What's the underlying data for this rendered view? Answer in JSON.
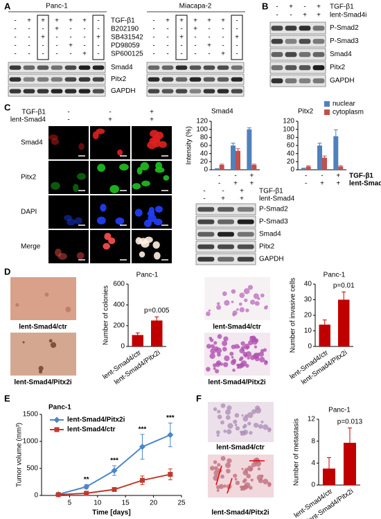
{
  "panels": {
    "a": {
      "letter": "A",
      "groups": [
        "Panc-1",
        "Miacapa-2"
      ],
      "treatments": [
        "TGF-β1",
        "B202190",
        "SB431542",
        "PD98059",
        "SP600125"
      ],
      "signs": [
        [
          "-",
          "+",
          "+",
          "+",
          "+",
          "+",
          "-"
        ],
        [
          "-",
          "-",
          "-",
          "+",
          "-",
          "-",
          "-"
        ],
        [
          "-",
          "-",
          "+",
          "-",
          "-",
          "-",
          "+"
        ],
        [
          "-",
          "-",
          "-",
          "-",
          "+",
          "-",
          "-"
        ],
        [
          "-",
          "-",
          "-",
          "-",
          "-",
          "+",
          "-"
        ]
      ],
      "blots": [
        "Smad4",
        "Pitx2",
        "GAPDH"
      ]
    },
    "b": {
      "letter": "B",
      "treatments": [
        "TGF-β1",
        "lent-Smad4i"
      ],
      "signs": [
        [
          "-",
          "+",
          "-",
          "+"
        ],
        [
          "-",
          "-",
          "+",
          "+"
        ]
      ],
      "blots": [
        "P-Smad2",
        "P-Smad3",
        "Smad4",
        "Pitx2",
        "GAPDH"
      ]
    },
    "c": {
      "letter": "C",
      "treatments": [
        "TGF-β1",
        "lent-Smad4"
      ],
      "image_signs": [
        [
          "-",
          "-",
          "+"
        ],
        [
          "-",
          "+",
          "+"
        ]
      ],
      "image_rows": [
        "Smad4",
        "Pitx2",
        "DAPI",
        "Merge"
      ],
      "chart_signs": [
        [
          "-",
          "-",
          "+"
        ],
        [
          "-",
          "+",
          "+"
        ]
      ],
      "blot_signs": [
        [
          "-",
          "-",
          "+"
        ],
        [
          "-",
          "+",
          "+"
        ]
      ],
      "blots": [
        "P-Smad2",
        "P-Smad3",
        "Smad4",
        "Pitx2",
        "GAPDH"
      ]
    },
    "d": {
      "letter": "D",
      "images": [
        "lent-Smad4/ctr",
        "lent-Smad4/Pitx2i"
      ]
    },
    "e": {
      "letter": "E"
    },
    "f": {
      "letter": "F",
      "images": [
        "lent-Smad4/ctr",
        "lent-Smad4/Pitx2i"
      ]
    }
  },
  "chart_data": [
    {
      "type": "bar",
      "title": "Smad4",
      "y_label": "Intensity (%)",
      "categories": [
        null,
        null,
        null
      ],
      "ylim": [
        0,
        120
      ],
      "yticks": [
        0,
        20,
        40,
        60,
        80,
        100,
        120
      ],
      "series": [
        {
          "name": "nuclear",
          "color": "#4f81bd",
          "values": [
            2,
            60,
            100
          ],
          "errors": [
            1,
            6,
            4
          ]
        },
        {
          "name": "cytoplasm",
          "color": "#c0504d",
          "values": [
            12,
            47,
            12
          ],
          "errors": [
            2,
            5,
            2
          ]
        }
      ]
    },
    {
      "type": "bar",
      "title": "Pitx2",
      "categories": [
        null,
        null,
        null
      ],
      "legend": "upper right",
      "ylim": [
        0,
        120
      ],
      "yticks": [
        0,
        20,
        40,
        60,
        80,
        100,
        120
      ],
      "series": [
        {
          "name": "nuclear",
          "color": "#4f81bd",
          "values": [
            3,
            60,
            83
          ],
          "errors": [
            1,
            6,
            16
          ]
        },
        {
          "name": "cytoplasm",
          "color": "#c0504d",
          "values": [
            8,
            30,
            8
          ],
          "errors": [
            2,
            4,
            2
          ]
        }
      ]
    },
    {
      "type": "bar",
      "title": "Panc-1",
      "y_label": "Number of colonies",
      "annotation": "p=0.005",
      "categories": [
        "lent-Smad4/ctr",
        "lent-Smad4/Pitx2i"
      ],
      "ylim": [
        0,
        600
      ],
      "yticks": [
        0,
        200,
        400,
        600
      ],
      "series": [
        {
          "color": "#c00000",
          "values": [
            110,
            250
          ],
          "errors": [
            20,
            35
          ]
        }
      ]
    },
    {
      "type": "bar",
      "title": "Panc-1",
      "y_label": "Number of invasive cells",
      "annotation": "p=0.01",
      "categories": [
        "lent-Smad4/ctr",
        "lent-Smad4/Pitx2i"
      ],
      "ylim": [
        0,
        40
      ],
      "yticks": [
        0,
        10,
        20,
        30,
        40
      ],
      "series": [
        {
          "color": "#c00000",
          "values": [
            14,
            30
          ],
          "errors": [
            3,
            5
          ]
        }
      ]
    },
    {
      "type": "line",
      "title": "Panc-1",
      "y_label": "Tumor volume (mm³)",
      "x_label": "Time [days]",
      "legend": "upper left",
      "x": [
        3,
        8,
        13,
        18,
        23
      ],
      "xlim": [
        0,
        25
      ],
      "xticks": [
        5,
        10,
        15,
        20,
        25
      ],
      "ylim": [
        0,
        1500
      ],
      "yticks": [
        0,
        500,
        1000,
        1500
      ],
      "significance": [
        null,
        "**",
        "***",
        "***",
        "***"
      ],
      "series": [
        {
          "name": "lent-Smad4/Pitx2i",
          "color": "#4a86c8",
          "marker": "diamond",
          "values": [
            20,
            160,
            460,
            900,
            1120
          ],
          "errors": [
            10,
            40,
            90,
            230,
            220
          ]
        },
        {
          "name": "lent-Smad4/ctr",
          "color": "#c0392b",
          "marker": "square",
          "values": [
            15,
            40,
            110,
            280,
            390
          ],
          "errors": [
            5,
            15,
            30,
            80,
            100
          ]
        }
      ]
    },
    {
      "type": "bar",
      "title": "Panc-1",
      "y_label": "Number of metastasis",
      "annotation": "p=0.013",
      "categories": [
        "lent-Smad4/ctr",
        "lent-Smad4/Pitx2i"
      ],
      "ylim": [
        0,
        12
      ],
      "yticks": [
        0,
        4,
        8,
        12
      ],
      "series": [
        {
          "color": "#c00000",
          "values": [
            3,
            7.7
          ],
          "errors": [
            2,
            2.7
          ]
        }
      ]
    }
  ]
}
